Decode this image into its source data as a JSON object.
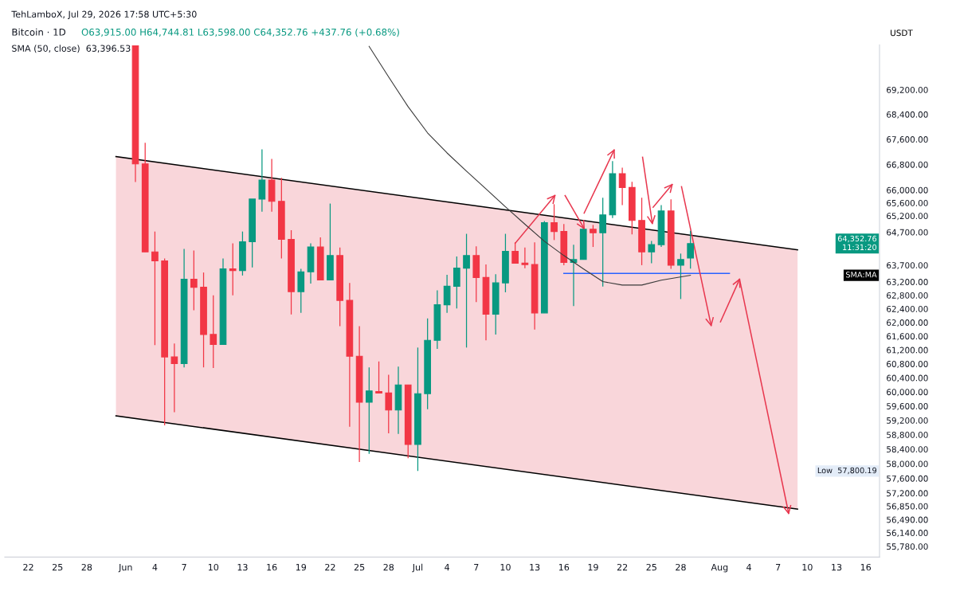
{
  "chart_data": {
    "type": "candlestick",
    "title": "Bitcoin · 1D",
    "subtitle": "O63,915.00 H64,744.81 L63,598.00 C64,352.76 +437.76 (+0.68%)",
    "ylabel": "USDT",
    "annotations": [
      "TehLamboX, Jul 29, 2026 17:58 UTC+5:30",
      "SMA (50, close)  63,396.53",
      "64,352.76\n11:31:20",
      "SMA:MA",
      "Low  57,800.19"
    ],
    "x": [
      "2026-06-02",
      "2026-06-03",
      "2026-06-04",
      "2026-06-05",
      "2026-06-06",
      "2026-06-07",
      "2026-06-08",
      "2026-06-09",
      "2026-06-10",
      "2026-06-11",
      "2026-06-12",
      "2026-06-13",
      "2026-06-14",
      "2026-06-15",
      "2026-06-16",
      "2026-06-17",
      "2026-06-18",
      "2026-06-19",
      "2026-06-20",
      "2026-06-21",
      "2026-06-22",
      "2026-06-23",
      "2026-06-24",
      "2026-06-25",
      "2026-06-26",
      "2026-06-27",
      "2026-06-28",
      "2026-06-29",
      "2026-06-30",
      "2026-07-01",
      "2026-07-02",
      "2026-07-03",
      "2026-07-04",
      "2026-07-05",
      "2026-07-06",
      "2026-07-07",
      "2026-07-08",
      "2026-07-09",
      "2026-07-10",
      "2026-07-11",
      "2026-07-12",
      "2026-07-13",
      "2026-07-14",
      "2026-07-15",
      "2026-07-16",
      "2026-07-17",
      "2026-07-18",
      "2026-07-19",
      "2026-07-20",
      "2026-07-21",
      "2026-07-22",
      "2026-07-23",
      "2026-07-24",
      "2026-07-25",
      "2026-07-26",
      "2026-07-27",
      "2026-07-28",
      "2026-07-29"
    ],
    "ohlc": [
      [
        70650,
        70650,
        66250,
        66820
      ],
      [
        66820,
        67490,
        64100,
        64100
      ],
      [
        64100,
        64720,
        61340,
        63830
      ],
      [
        63830,
        63900,
        59060,
        61000
      ],
      [
        61000,
        61390,
        59430,
        60810
      ],
      [
        60810,
        64190,
        60700,
        63280
      ],
      [
        63280,
        64140,
        62360,
        63040
      ],
      [
        63040,
        63480,
        60700,
        61650
      ],
      [
        61650,
        62800,
        60680,
        61360
      ],
      [
        61360,
        63900,
        61360,
        63590
      ],
      [
        63590,
        64360,
        62800,
        63540
      ],
      [
        63540,
        64720,
        63390,
        64410
      ],
      [
        64410,
        65720,
        63630,
        65720
      ],
      [
        65720,
        67280,
        65330,
        66310
      ],
      [
        66310,
        66980,
        65330,
        65650
      ],
      [
        65650,
        66380,
        63900,
        64480
      ],
      [
        64480,
        64760,
        62235,
        62910
      ],
      [
        62910,
        63590,
        62280,
        63500
      ],
      [
        63500,
        64360,
        63150,
        64250
      ],
      [
        64250,
        64540,
        63260,
        63260
      ],
      [
        63260,
        65580,
        63260,
        63990
      ],
      [
        63990,
        64230,
        61890,
        62650
      ],
      [
        62650,
        63170,
        59020,
        61020
      ],
      [
        61020,
        61890,
        58050,
        59710
      ],
      [
        59710,
        60700,
        58270,
        60030
      ],
      [
        60010,
        60870,
        59970,
        59970
      ],
      [
        59970,
        60490,
        58840,
        59490
      ],
      [
        59490,
        60720,
        58820,
        60200
      ],
      [
        60200,
        60200,
        58150,
        58530
      ],
      [
        58530,
        61270,
        57800.19,
        59950
      ],
      [
        59950,
        62120,
        59510,
        61480
      ],
      [
        61480,
        62950,
        61230,
        62520
      ],
      [
        62520,
        63410,
        62280,
        63070
      ],
      [
        63070,
        63960,
        62410,
        63610
      ],
      [
        63610,
        64650,
        61270,
        63990
      ],
      [
        63990,
        64270,
        62600,
        63330
      ],
      [
        63330,
        63720,
        61480,
        62240
      ],
      [
        62240,
        63430,
        61650,
        63170
      ],
      [
        63170,
        64650,
        62890,
        64120
      ],
      [
        64120,
        64390,
        63760,
        63760
      ],
      [
        63760,
        64230,
        63610,
        63720
      ],
      [
        63720,
        64390,
        61790,
        62280
      ],
      [
        62280,
        65040,
        62280,
        64990
      ],
      [
        64990,
        65560,
        64460,
        64720
      ],
      [
        64720,
        64950,
        63700,
        63780
      ],
      [
        63780,
        64320,
        62480,
        63870
      ],
      [
        63870,
        64850,
        63870,
        64790
      ],
      [
        64790,
        64920,
        64250,
        64680
      ],
      [
        64680,
        65760,
        63060,
        65230
      ],
      [
        65230,
        66910,
        65130,
        66510
      ],
      [
        66510,
        66700,
        65530,
        66080
      ],
      [
        66080,
        66260,
        64630,
        65060
      ],
      [
        65060,
        65760,
        63700,
        64100
      ],
      [
        64100,
        64430,
        63760,
        64320
      ],
      [
        64320,
        65530,
        64250,
        65350
      ],
      [
        65350,
        65710,
        63590,
        63700
      ],
      [
        63700,
        64050,
        62690,
        63870
      ],
      [
        63915,
        64744.81,
        63598,
        64352.76
      ]
    ],
    "colors": [
      "#f23645",
      "#f23645",
      "#f23645",
      "#f23645",
      "#f23645",
      "#089981",
      "#f23645",
      "#f23645",
      "#f23645",
      "#089981",
      "#f23645",
      "#089981",
      "#089981",
      "#089981",
      "#f23645",
      "#f23645",
      "#f23645",
      "#089981",
      "#089981",
      "#f23645",
      "#089981",
      "#f23645",
      "#f23645",
      "#f23645",
      "#089981",
      "#f23645",
      "#f23645",
      "#089981",
      "#f23645",
      "#089981",
      "#089981",
      "#089981",
      "#089981",
      "#089981",
      "#089981",
      "#f23645",
      "#f23645",
      "#089981",
      "#089981",
      "#f23645",
      "#f23645",
      "#f23645",
      "#089981",
      "#f23645",
      "#f23645",
      "#089981",
      "#089981",
      "#f23645",
      "#089981",
      "#089981",
      "#f23645",
      "#f23645",
      "#f23645",
      "#089981",
      "#089981",
      "#f23645",
      "#089981",
      "#089981"
    ],
    "series": [
      {
        "type": "line",
        "x": [
          "2026-05-31",
          "2026-08-09"
        ],
        "values": [
          67051,
          64163
        ],
        "lower": [
          59327,
          56771
        ],
        "upper": [
          67051,
          64163
        ],
        "color": "#000000"
      },
      {
        "type": "line",
        "x": [
          "2026-05-31",
          "2026-08-09"
        ],
        "values": [
          59327,
          56771
        ],
        "color": "#000000"
      },
      {
        "type": "line",
        "x": [
          "2026-06-26",
          "2026-06-28",
          "2026-06-30",
          "2026-07-02",
          "2026-07-04",
          "2026-07-06",
          "2026-07-08",
          "2026-07-10",
          "2026-07-12",
          "2026-07-14",
          "2026-07-16",
          "2026-07-18",
          "2026-07-20",
          "2026-07-22",
          "2026-07-24",
          "2026-07-26",
          "2026-07-29"
        ],
        "values": [
          70630,
          69621,
          68650,
          67806,
          67167,
          66590,
          66036,
          65479,
          64944,
          64424,
          63990,
          63589,
          63207,
          63104,
          63104,
          63250,
          63396.53
        ],
        "color": "#3a3a3a"
      },
      {
        "type": "line",
        "x": [
          "2026-07-16",
          "2026-08-02"
        ],
        "values": [
          63454,
          63454
        ],
        "color": "#2962ff"
      },
      {
        "type": "line",
        "x": [
          "2026-07-11T00:00",
          "2026-07-15T02:00"
        ],
        "values": [
          64363,
          65830
        ],
        "color": "#e8384f"
      },
      {
        "type": "line",
        "x": [
          "2026-07-16T03:00",
          "2026-07-18T02:00"
        ],
        "values": [
          65830,
          64811
        ],
        "color": "#e8384f"
      },
      {
        "type": "line",
        "x": [
          "2026-07-18T02:00",
          "2026-07-21T04:00"
        ],
        "values": [
          65285,
          67260
        ],
        "color": "#e8384f"
      },
      {
        "type": "line",
        "x": [
          "2026-07-24T02:00",
          "2026-07-25T02:00"
        ],
        "values": [
          67028,
          64968
        ],
        "color": "#e8384f"
      },
      {
        "type": "line",
        "x": [
          "2026-07-25T04:00",
          "2026-07-27T03:00"
        ],
        "values": [
          65466,
          66173
        ],
        "color": "#e8384f"
      },
      {
        "type": "line",
        "x": [
          "2026-07-28T02:00",
          "2026-07-31T03:00"
        ],
        "values": [
          66105,
          61912
        ],
        "color": "#e8384f"
      },
      {
        "type": "line",
        "x": [
          "2026-08-01T02:00",
          "2026-08-03T01:00"
        ],
        "values": [
          62019,
          63279
        ],
        "color": "#e8384f"
      },
      {
        "type": "line",
        "x": [
          "2026-08-03T01:00",
          "2026-08-08T02:00"
        ],
        "values": [
          63279,
          56657
        ],
        "color": "#e8384f"
      }
    ],
    "log": true,
    "xlim": [
      "2026-05-19T14:00",
      "2026-08-17T10:00"
    ],
    "xticks": [
      {
        "value": "2026-05-22",
        "label": "22"
      },
      {
        "value": "2026-05-25",
        "label": "25"
      },
      {
        "value": "2026-05-28",
        "label": "28"
      },
      {
        "value": "2026-06-01",
        "label": "Jun"
      },
      {
        "value": "2026-06-04",
        "label": "4"
      },
      {
        "value": "2026-06-07",
        "label": "7"
      },
      {
        "value": "2026-06-10",
        "label": "10"
      },
      {
        "value": "2026-06-13",
        "label": "13"
      },
      {
        "value": "2026-06-16",
        "label": "16"
      },
      {
        "value": "2026-06-19",
        "label": "19"
      },
      {
        "value": "2026-06-22",
        "label": "22"
      },
      {
        "value": "2026-06-25",
        "label": "25"
      },
      {
        "value": "2026-06-28",
        "label": "28"
      },
      {
        "value": "2026-07-01",
        "label": "Jul"
      },
      {
        "value": "2026-07-04",
        "label": "4"
      },
      {
        "value": "2026-07-07",
        "label": "7"
      },
      {
        "value": "2026-07-10",
        "label": "10"
      },
      {
        "value": "2026-07-13",
        "label": "13"
      },
      {
        "value": "2026-07-16",
        "label": "16"
      },
      {
        "value": "2026-07-19",
        "label": "19"
      },
      {
        "value": "2026-07-22",
        "label": "22"
      },
      {
        "value": "2026-07-25",
        "label": "25"
      },
      {
        "value": "2026-07-28",
        "label": "28"
      },
      {
        "value": "2026-08-01",
        "label": "Aug"
      },
      {
        "value": "2026-08-04",
        "label": "4"
      },
      {
        "value": "2026-08-07",
        "label": "7"
      },
      {
        "value": "2026-08-10",
        "label": "10"
      },
      {
        "value": "2026-08-13",
        "label": "13"
      },
      {
        "value": "2026-08-16",
        "label": "16"
      }
    ],
    "ylim": [
      55500,
      70680
    ],
    "yticks": [
      {
        "value": 69200,
        "label": "69,200.00"
      },
      {
        "value": 68400,
        "label": "68,400.00"
      },
      {
        "value": 67600,
        "label": "67,600.00"
      },
      {
        "value": 66800,
        "label": "66,800.00"
      },
      {
        "value": 66000,
        "label": "66,000.00"
      },
      {
        "value": 65600,
        "label": "65,600.00"
      },
      {
        "value": 65200,
        "label": "65,200.00"
      },
      {
        "value": 64700,
        "label": "64,700.00"
      },
      {
        "value": 63700,
        "label": "63,700.00"
      },
      {
        "value": 63200,
        "label": "63,200.00"
      },
      {
        "value": 62800,
        "label": "62,800.00"
      },
      {
        "value": 62400,
        "label": "62,400.00"
      },
      {
        "value": 62000,
        "label": "62,000.00"
      },
      {
        "value": 61600,
        "label": "61,600.00"
      },
      {
        "value": 61200,
        "label": "61,200.00"
      },
      {
        "value": 60800,
        "label": "60,800.00"
      },
      {
        "value": 60400,
        "label": "60,400.00"
      },
      {
        "value": 60000,
        "label": "60,000.00"
      },
      {
        "value": 59600,
        "label": "59,600.00"
      },
      {
        "value": 59200,
        "label": "59,200.00"
      },
      {
        "value": 58800,
        "label": "58,800.00"
      },
      {
        "value": 58400,
        "label": "58,400.00"
      },
      {
        "value": 58000,
        "label": "58,000.00"
      },
      {
        "value": 57600,
        "label": "57,600.00"
      },
      {
        "value": 57200,
        "label": "57,200.00"
      },
      {
        "value": 56850,
        "label": "56,850.00"
      },
      {
        "value": 56490,
        "label": "56,490.00"
      },
      {
        "value": 56140,
        "label": "56,140.00"
      },
      {
        "value": 55780,
        "label": "55,780.00"
      }
    ]
  }
}
